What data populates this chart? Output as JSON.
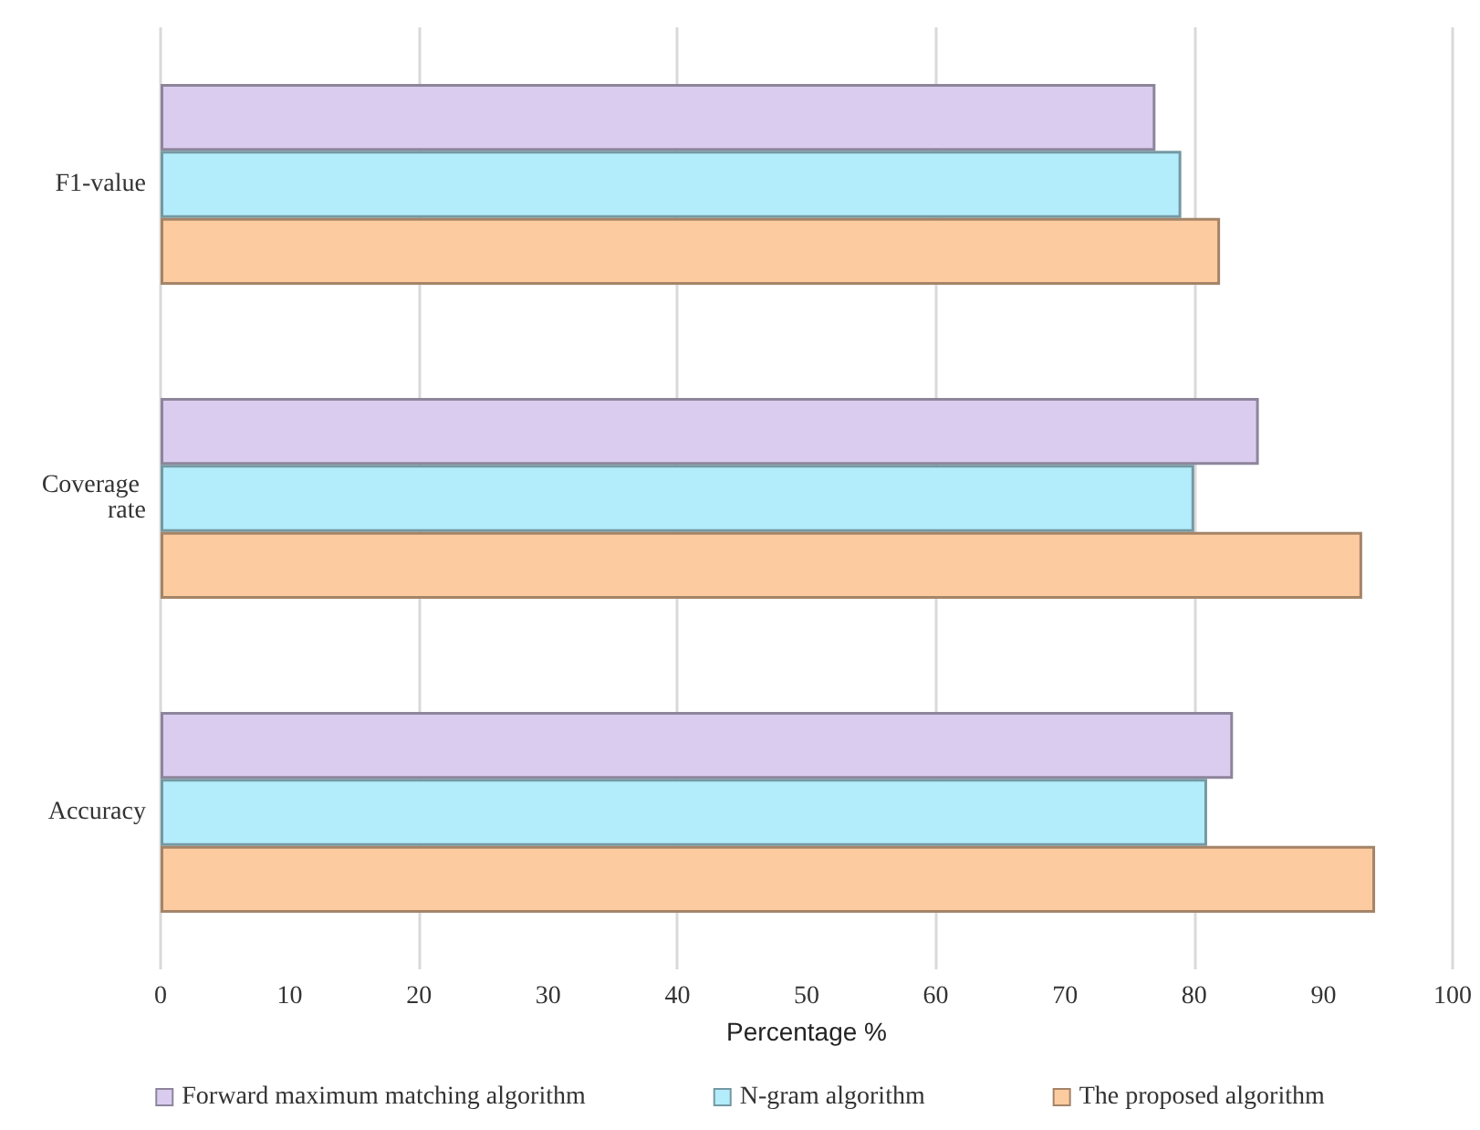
{
  "chart_data": {
    "type": "bar",
    "orientation": "horizontal",
    "categories": [
      "F1-value",
      "Coverage rate",
      "Accuracy"
    ],
    "xlabel": "Percentage %",
    "series": [
      {
        "name": "Forward maximum matching algorithm",
        "color": "#d9ccef",
        "values": [
          77,
          85,
          83
        ]
      },
      {
        "name": "N-gram algorithm",
        "color": "#b3ecfa",
        "values": [
          79,
          80,
          81
        ]
      },
      {
        "name": "The proposed algorithm",
        "color": "#fdcba0",
        "values": [
          82,
          93,
          94
        ]
      }
    ],
    "xlim": [
      0,
      100
    ],
    "xticks": [
      0,
      10,
      20,
      30,
      40,
      50,
      60,
      70,
      80,
      90,
      100
    ],
    "grid": "x",
    "legend": "bottom"
  }
}
